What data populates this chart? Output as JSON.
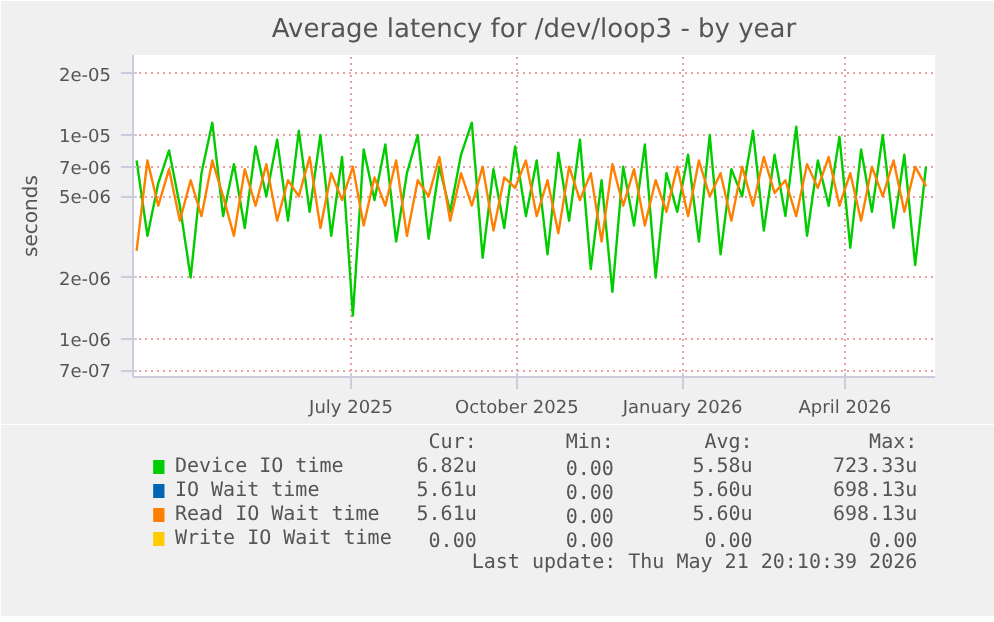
{
  "chart_data": {
    "type": "line",
    "title": "Average latency for /dev/loop3 - by year",
    "ylabel": "seconds",
    "log": "y",
    "grid": true,
    "legend": "bottom",
    "line_style": "solid",
    "marker": "none",
    "xlim": [
      "2025-03-02",
      "2026-05-21"
    ],
    "xticks": [
      {
        "value": "2025-07-01",
        "label": "July 2025"
      },
      {
        "value": "2025-10-01",
        "label": "October 2025"
      },
      {
        "value": "2026-01-01",
        "label": "January 2026"
      },
      {
        "value": "2026-04-01",
        "label": "April 2026"
      }
    ],
    "ylim": [
      6.5e-07,
      2.47e-05
    ],
    "yticks": [
      7e-07,
      1e-06,
      2e-06,
      5e-06,
      7e-06,
      1e-05,
      2e-05
    ],
    "x": [
      "2025-03-04",
      "2025-03-10",
      "2025-03-16",
      "2025-03-22",
      "2025-03-28",
      "2025-04-03",
      "2025-04-09",
      "2025-04-15",
      "2025-04-21",
      "2025-04-27",
      "2025-05-03",
      "2025-05-09",
      "2025-05-15",
      "2025-05-21",
      "2025-05-27",
      "2025-06-02",
      "2025-06-08",
      "2025-06-14",
      "2025-06-20",
      "2025-06-26",
      "2025-07-02",
      "2025-07-08",
      "2025-07-14",
      "2025-07-20",
      "2025-07-26",
      "2025-08-01",
      "2025-08-07",
      "2025-08-13",
      "2025-08-19",
      "2025-08-25",
      "2025-08-31",
      "2025-09-06",
      "2025-09-12",
      "2025-09-18",
      "2025-09-24",
      "2025-09-30",
      "2025-10-06",
      "2025-10-12",
      "2025-10-18",
      "2025-10-24",
      "2025-10-30",
      "2025-11-05",
      "2025-11-11",
      "2025-11-17",
      "2025-11-23",
      "2025-11-29",
      "2025-12-05",
      "2025-12-11",
      "2025-12-17",
      "2025-12-23",
      "2025-12-29",
      "2026-01-04",
      "2026-01-10",
      "2026-01-16",
      "2026-01-22",
      "2026-01-28",
      "2026-02-03",
      "2026-02-09",
      "2026-02-15",
      "2026-02-21",
      "2026-02-27",
      "2026-03-05",
      "2026-03-11",
      "2026-03-17",
      "2026-03-23",
      "2026-03-29",
      "2026-04-04",
      "2026-04-10",
      "2026-04-16",
      "2026-04-22",
      "2026-04-28",
      "2026-05-04",
      "2026-05-10",
      "2026-05-16"
    ],
    "series": [
      {
        "name": "Device IO time",
        "color": "#00cc00",
        "values": [
          7.5e-06,
          3.2e-06,
          5.8e-06,
          8.4e-06,
          4.5e-06,
          2e-06,
          6.5e-06,
          1.15e-05,
          4e-06,
          7.2e-06,
          3.5e-06,
          8.8e-06,
          5e-06,
          9.5e-06,
          3.8e-06,
          1.05e-05,
          4.2e-06,
          1e-05,
          3.2e-06,
          7.8e-06,
          1.3e-06,
          8.5e-06,
          4.8e-06,
          9e-06,
          3e-06,
          6.5e-06,
          1e-05,
          3.1e-06,
          7e-06,
          4.2e-06,
          8e-06,
          1.15e-05,
          2.5e-06,
          6.8e-06,
          3.5e-06,
          8.8e-06,
          4e-06,
          7.5e-06,
          2.6e-06,
          8.2e-06,
          3.8e-06,
          9.5e-06,
          2.2e-06,
          6e-06,
          1.7e-06,
          7e-06,
          3.6e-06,
          9e-06,
          2e-06,
          6.5e-06,
          4.2e-06,
          8e-06,
          3e-06,
          1e-05,
          2.6e-06,
          6.8e-06,
          5e-06,
          1.05e-05,
          3.4e-06,
          8e-06,
          4e-06,
          1.1e-05,
          3.2e-06,
          7.5e-06,
          4.5e-06,
          9.8e-06,
          2.8e-06,
          8.5e-06,
          4.2e-06,
          1e-05,
          3.5e-06,
          8e-06,
          2.3e-06,
          7e-06
        ]
      },
      {
        "name": "IO Wait time",
        "color": "#0066b3",
        "values": [
          null,
          null,
          null,
          null,
          null,
          null,
          null,
          null,
          null,
          null,
          null,
          null,
          null,
          null,
          null,
          null,
          null,
          null,
          null,
          null,
          null,
          null,
          null,
          null,
          null,
          null,
          null,
          null,
          null,
          null,
          null,
          null,
          null,
          null,
          null,
          null,
          null,
          null,
          null,
          null,
          null,
          null,
          null,
          null,
          null,
          null,
          null,
          null,
          null,
          null,
          null,
          null,
          null,
          null,
          null,
          null,
          null,
          null,
          null,
          null,
          null,
          null,
          null,
          null,
          null,
          null,
          null,
          null,
          null,
          null,
          null,
          null,
          null,
          null
        ]
      },
      {
        "name": "Read IO Wait time",
        "color": "#ff8000",
        "values": [
          2.7e-06,
          7.5e-06,
          4.5e-06,
          6.8e-06,
          3.8e-06,
          6e-06,
          4e-06,
          7.5e-06,
          5e-06,
          3.2e-06,
          6.8e-06,
          4.5e-06,
          7.2e-06,
          3.8e-06,
          6e-06,
          5e-06,
          7.8e-06,
          3.5e-06,
          6.5e-06,
          4.8e-06,
          7e-06,
          3.6e-06,
          6.2e-06,
          4.5e-06,
          7.5e-06,
          3.2e-06,
          6e-06,
          5e-06,
          7.8e-06,
          3.8e-06,
          6.5e-06,
          4.5e-06,
          7e-06,
          3.4e-06,
          6.2e-06,
          5.5e-06,
          7.5e-06,
          4e-06,
          6e-06,
          3.3e-06,
          7e-06,
          4.8e-06,
          6.5e-06,
          3e-06,
          7.2e-06,
          4.5e-06,
          6.8e-06,
          3.6e-06,
          6e-06,
          4.2e-06,
          7e-06,
          4e-06,
          7.5e-06,
          5e-06,
          6.5e-06,
          3.8e-06,
          7e-06,
          4.5e-06,
          7.8e-06,
          5.2e-06,
          6e-06,
          4e-06,
          7.2e-06,
          5.5e-06,
          7.8e-06,
          4.5e-06,
          6.5e-06,
          3.8e-06,
          7e-06,
          5e-06,
          7.5e-06,
          4.2e-06,
          7e-06,
          5.6e-06
        ]
      },
      {
        "name": "Write IO Wait time",
        "color": "#ffcc00",
        "values": [
          null,
          null,
          null,
          null,
          null,
          null,
          null,
          null,
          null,
          null,
          null,
          null,
          null,
          null,
          null,
          null,
          null,
          null,
          null,
          null,
          null,
          null,
          null,
          null,
          null,
          null,
          null,
          null,
          null,
          null,
          null,
          null,
          null,
          null,
          null,
          null,
          null,
          null,
          null,
          null,
          null,
          null,
          null,
          null,
          null,
          null,
          null,
          null,
          null,
          null,
          null,
          null,
          null,
          null,
          null,
          null,
          null,
          null,
          null,
          null,
          null,
          null,
          null,
          null,
          null,
          null,
          null,
          null,
          null,
          null,
          null,
          null,
          null,
          null
        ]
      }
    ],
    "annotations": [
      "Cur:",
      "Min:",
      "Avg:",
      "Max:",
      "6.82u",
      "0.00",
      "5.58u",
      "723.33u",
      "5.61u",
      "0.00",
      "5.60u",
      "698.13u",
      "5.61u",
      "0.00",
      "5.60u",
      "698.13u",
      "0.00",
      "0.00",
      "0.00",
      "0.00",
      "Last update: Thu May 21 20:10:39 2026"
    ]
  }
}
